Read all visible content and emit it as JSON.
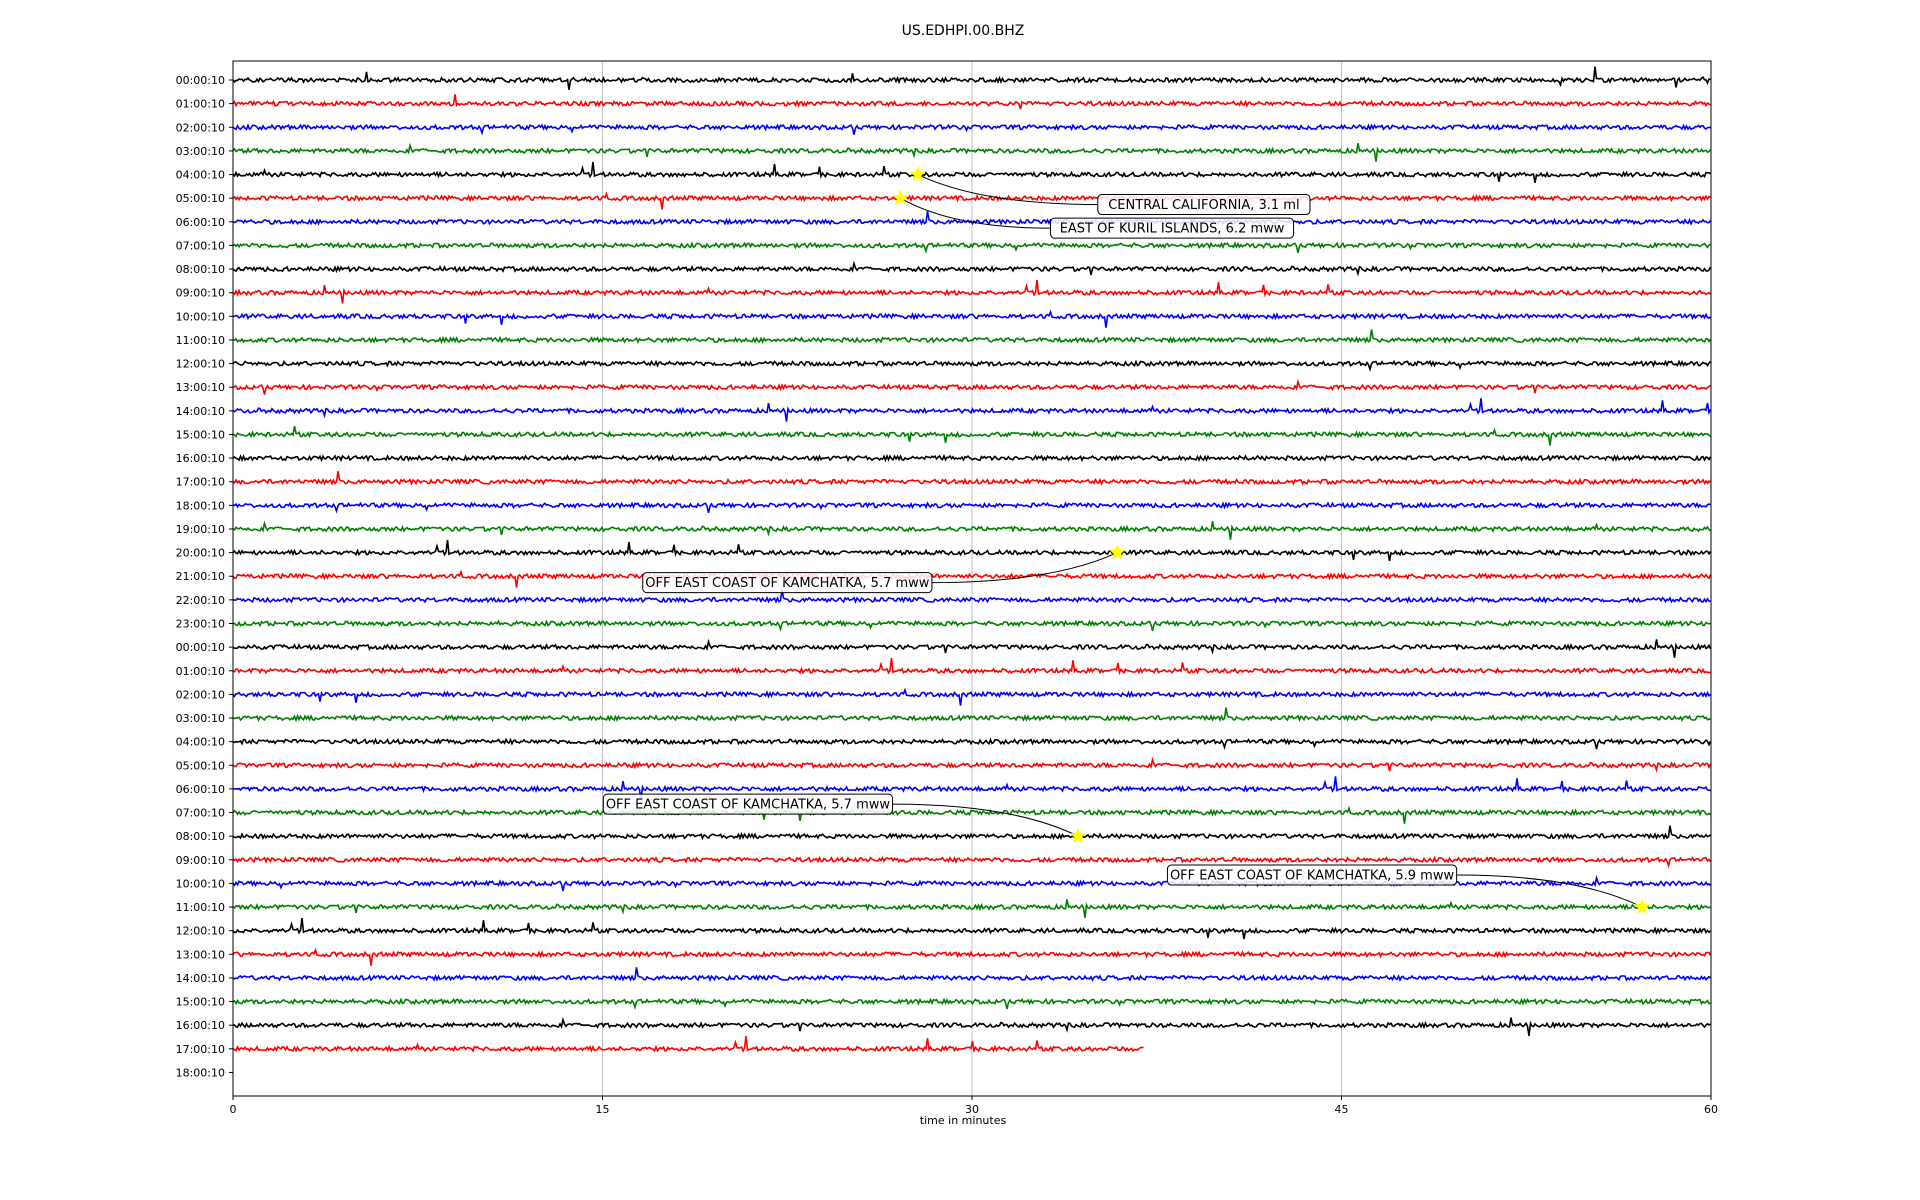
{
  "chart_data": {
    "type": "line",
    "title": "US.EDHPI.00.BHZ",
    "xlabel": "time in minutes",
    "ylabel": "",
    "xlim": [
      0,
      60
    ],
    "x_ticks": [
      0,
      15,
      30,
      45,
      60
    ],
    "grid": "vertical",
    "trace_colors": [
      "#000000",
      "#ff0000",
      "#0000ff",
      "#008000"
    ],
    "rows": [
      "00:00:10",
      "01:00:10",
      "02:00:10",
      "03:00:10",
      "04:00:10",
      "05:00:10",
      "06:00:10",
      "07:00:10",
      "08:00:10",
      "09:00:10",
      "10:00:10",
      "11:00:10",
      "12:00:10",
      "13:00:10",
      "14:00:10",
      "15:00:10",
      "16:00:10",
      "17:00:10",
      "18:00:10",
      "19:00:10",
      "20:00:10",
      "21:00:10",
      "22:00:10",
      "23:00:10",
      "00:00:10",
      "01:00:10",
      "02:00:10",
      "03:00:10",
      "04:00:10",
      "05:00:10",
      "06:00:10",
      "07:00:10",
      "08:00:10",
      "09:00:10",
      "10:00:10",
      "11:00:10",
      "12:00:10",
      "13:00:10",
      "14:00:10",
      "15:00:10",
      "16:00:10",
      "17:00:10",
      "18:00:10"
    ],
    "last_trace_end_minute": 37,
    "events": [
      {
        "label": "CENTRAL CALIFORNIA, 3.1 ml",
        "row": 4,
        "minute": 27.8
      },
      {
        "label": "EAST OF KURIL ISLANDS, 6.2 mww",
        "row": 5,
        "minute": 27.1
      },
      {
        "label": "OFF EAST COAST OF KAMCHATKA, 5.7 mww",
        "row": 20,
        "minute": 35.9
      },
      {
        "label": "OFF EAST COAST OF KAMCHATKA, 5.7 mww",
        "row": 32,
        "minute": 34.3
      },
      {
        "label": "OFF EAST COAST OF KAMCHATKA, 5.9 mww",
        "row": 35,
        "minute": 57.2
      }
    ]
  }
}
